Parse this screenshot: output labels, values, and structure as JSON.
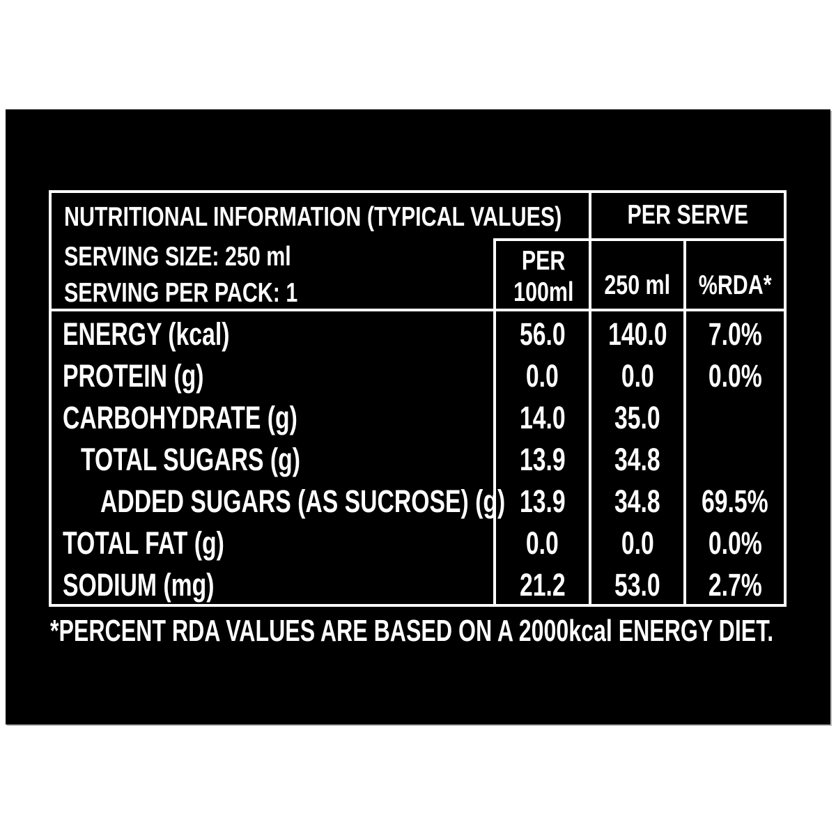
{
  "colors": {
    "background": "#ffffff",
    "panel_bg": "#000000",
    "text": "#ffffff",
    "border": "#ffffff"
  },
  "table": {
    "title": "NUTRITIONAL INFORMATION (TYPICAL VALUES)",
    "serving_size": "SERVING SIZE: 250 ml",
    "serving_per_pack": "SERVING PER PACK: 1",
    "per_serve_header": "PER SERVE",
    "col_per100_line1": "PER",
    "col_per100_line2": "100ml",
    "col_250": "250 ml",
    "col_rda": "%RDA*",
    "rows": [
      {
        "label": "ENERGY (kcal)",
        "per100": "56.0",
        "per250": "140.0",
        "rda": "7.0%"
      },
      {
        "label": "PROTEIN (g)",
        "per100": "0.0",
        "per250": "0.0",
        "rda": "0.0%"
      },
      {
        "label": "CARBOHYDRATE (g)",
        "per100": "14.0",
        "per250": "35.0",
        "rda": ""
      },
      {
        "label": "TOTAL SUGARS (g)",
        "per100": "13.9",
        "per250": "34.8",
        "rda": ""
      },
      {
        "label": "ADDED SUGARS (AS SUCROSE) (g)",
        "per100": "13.9",
        "per250": "34.8",
        "rda": "69.5%"
      },
      {
        "label": "TOTAL FAT (g)",
        "per100": "0.0",
        "per250": "0.0",
        "rda": "0.0%"
      },
      {
        "label": "SODIUM (mg)",
        "per100": "21.2",
        "per250": "53.0",
        "rda": "2.7%"
      }
    ]
  },
  "footnote": "*PERCENT RDA VALUES ARE BASED ON A 2000kcal ENERGY DIET."
}
